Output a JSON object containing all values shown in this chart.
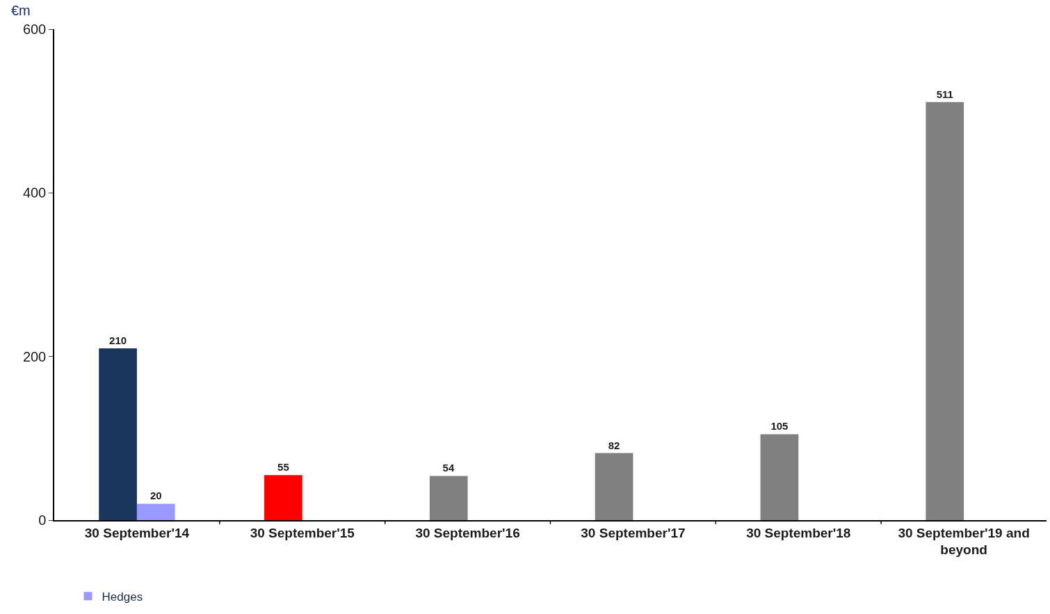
{
  "chart_data": {
    "type": "bar",
    "ylabel": "€m",
    "categories": [
      "30 September'14",
      "30 September'15",
      "30 September'16",
      "30 September'17",
      "30 September'18",
      "30 September'19 and beyond"
    ],
    "series": [
      {
        "colors": [
          "#1b365d",
          "#ff0000",
          "#808080",
          "#808080",
          "#808080",
          "#808080"
        ],
        "values": [
          210,
          55,
          54,
          82,
          105,
          511
        ]
      },
      {
        "name": "Hedges",
        "color": "#9999ff",
        "values": [
          20,
          null,
          null,
          null,
          null,
          null
        ]
      }
    ],
    "ylim": [
      0,
      600
    ],
    "yticks": [
      0,
      200,
      400,
      600
    ],
    "grid": false,
    "legend": "bottom left",
    "data_labels": true
  }
}
